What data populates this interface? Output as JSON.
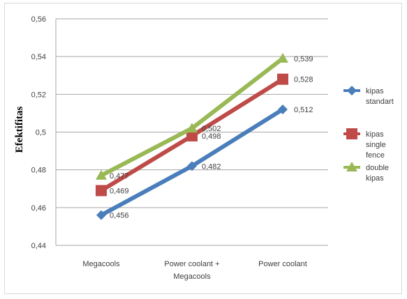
{
  "chart_data": {
    "type": "line",
    "title": "",
    "xlabel": "",
    "ylabel": "Efektifitas",
    "categories": [
      "Megacools",
      "Power coolant + Megacools",
      "Power coolant"
    ],
    "category_labels": [
      [
        "Megacools"
      ],
      [
        "Power coolant +",
        "Megacools"
      ],
      [
        "Power coolant"
      ]
    ],
    "ylim": [
      0.44,
      0.56
    ],
    "yticks": [
      0.44,
      0.46,
      0.48,
      0.5,
      0.52,
      0.54,
      0.56
    ],
    "ytick_labels": [
      "0,44",
      "0,46",
      "0,48",
      "0,5",
      "0,52",
      "0,54",
      "0,56"
    ],
    "grid": true,
    "legend_position": "right",
    "series": [
      {
        "name": "kipas standart",
        "legend_lines": [
          "kipas",
          "standart"
        ],
        "color": "#4a7ebb",
        "marker": "diamond",
        "values": [
          0.456,
          0.482,
          0.512
        ],
        "labels": [
          "0,456",
          "0,482",
          "0,512"
        ]
      },
      {
        "name": "kipas single fence",
        "legend_lines": [
          "kipas",
          "single",
          "fence"
        ],
        "color": "#be4b48",
        "marker": "square",
        "values": [
          0.469,
          0.498,
          0.528
        ],
        "labels": [
          "0,469",
          "0,498",
          "0,528"
        ]
      },
      {
        "name": "double kipas",
        "legend_lines": [
          "double",
          "kipas"
        ],
        "color": "#98b954",
        "marker": "triangle",
        "values": [
          0.477,
          0.502,
          0.539
        ],
        "labels": [
          "0,477",
          "0,502",
          "0,539"
        ]
      }
    ]
  }
}
